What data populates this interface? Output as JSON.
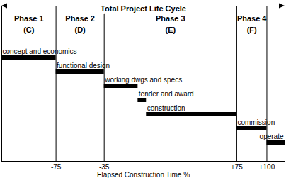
{
  "chart_data": {
    "type": "gantt",
    "orientation": "horizontal",
    "title": "Total Project Life Cycle",
    "x_label": "Elapsed Construction Time %",
    "xlim": [
      -120,
      115
    ],
    "xticks": [
      -75,
      -35,
      {
        "value": 75,
        "label": "+75"
      },
      {
        "value": 100,
        "label": "+100"
      }
    ],
    "color": "#000000",
    "phases": [
      {
        "name": "Phase 1",
        "code": "(C)",
        "start": -120,
        "end": -75
      },
      {
        "name": "Phase 2",
        "code": "(D)",
        "start": -75,
        "end": -35
      },
      {
        "name": "Phase 3",
        "code": "(E)",
        "start": -35,
        "end": 75
      },
      {
        "name": "Phase 4",
        "code": "(F)",
        "start": 75,
        "end": 100
      }
    ],
    "tasks": [
      {
        "name": "concept and economics",
        "start": -120,
        "end": -75
      },
      {
        "name": "functional design",
        "start": -75,
        "end": -35
      },
      {
        "name": "working dwgs and specs",
        "start": -35,
        "end": -7
      },
      {
        "name": "tender and award",
        "start": -7,
        "end": 0
      },
      {
        "name": "construction",
        "start": 0,
        "end": 75
      },
      {
        "name": "commission",
        "start": 75,
        "end": 100
      },
      {
        "name": "operate",
        "start": 100,
        "end": 115
      }
    ]
  }
}
